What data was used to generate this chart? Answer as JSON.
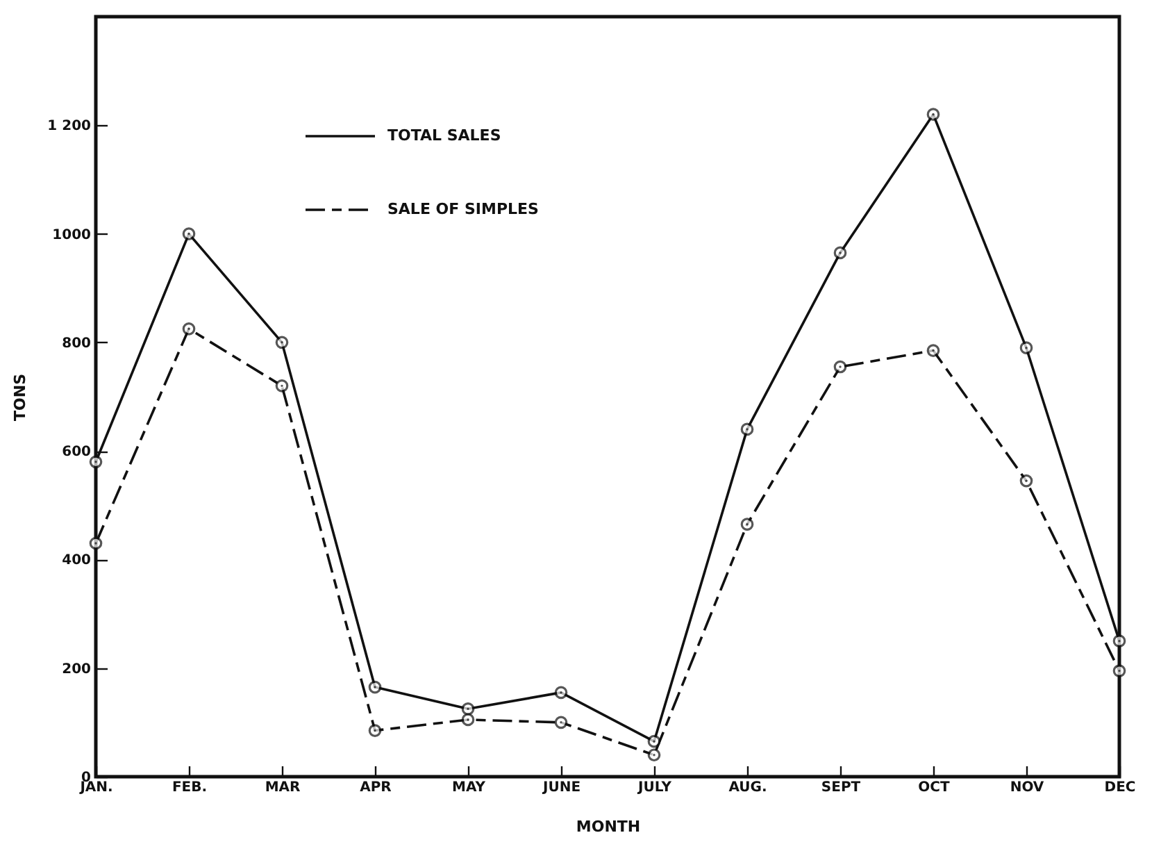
{
  "chart_data": {
    "type": "line",
    "xlabel": "MONTH",
    "ylabel": "TONS",
    "categories": [
      "JAN.",
      "FEB.",
      "MAR",
      "APR",
      "MAY",
      "JUNE",
      "JULY",
      "AUG.",
      "SEPT",
      "OCT",
      "NOV",
      "DEC"
    ],
    "series": [
      {
        "name": "TOTAL SALES",
        "color": "#111111",
        "line_style": "solid",
        "values": [
          580,
          1000,
          800,
          165,
          125,
          155,
          65,
          640,
          965,
          1220,
          790,
          250
        ]
      },
      {
        "name": "SALE OF SIMPLES",
        "color": "#111111",
        "line_style": "dashed",
        "values": [
          430,
          825,
          720,
          85,
          105,
          100,
          40,
          465,
          755,
          785,
          545,
          195
        ]
      }
    ],
    "ylim": [
      0,
      1400
    ],
    "yticks": [
      0,
      200,
      400,
      600,
      800,
      1000,
      {
        "value": 1200,
        "label": "1 200"
      }
    ],
    "marker": "circle",
    "legend": "top left",
    "grid": false
  }
}
